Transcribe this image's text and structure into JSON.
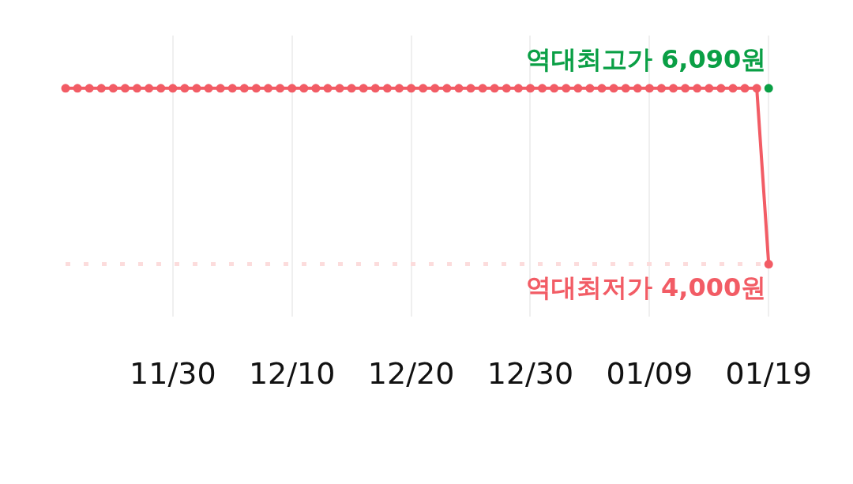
{
  "chart_data": {
    "type": "line",
    "categories": [
      null,
      null,
      null,
      null,
      null,
      null,
      null,
      null,
      null,
      "11/30",
      null,
      null,
      null,
      null,
      null,
      null,
      null,
      null,
      null,
      "12/10",
      null,
      null,
      null,
      null,
      null,
      null,
      null,
      null,
      null,
      "12/20",
      null,
      null,
      null,
      null,
      null,
      null,
      null,
      null,
      null,
      "12/30",
      null,
      null,
      null,
      null,
      null,
      null,
      null,
      null,
      null,
      "01/09",
      null,
      null,
      null,
      null,
      null,
      null,
      null,
      null,
      null,
      "01/19"
    ],
    "tick_labels": "x",
    "grid": "x",
    "marker": "circle",
    "line_style": "solid",
    "series": [
      {
        "color": "#f25c65",
        "values": [
          6090,
          6090,
          6090,
          6090,
          6090,
          6090,
          6090,
          6090,
          6090,
          6090,
          6090,
          6090,
          6090,
          6090,
          6090,
          6090,
          6090,
          6090,
          6090,
          6090,
          6090,
          6090,
          6090,
          6090,
          6090,
          6090,
          6090,
          6090,
          6090,
          6090,
          6090,
          6090,
          6090,
          6090,
          6090,
          6090,
          6090,
          6090,
          6090,
          6090,
          6090,
          6090,
          6090,
          6090,
          6090,
          6090,
          6090,
          6090,
          6090,
          6090,
          6090,
          6090,
          6090,
          6090,
          6090,
          6090,
          6090,
          6090,
          6090,
          4000
        ],
        "value_labels": [
          null,
          null,
          null,
          null,
          null,
          null,
          null,
          null,
          null,
          null,
          null,
          null,
          null,
          null,
          null,
          null,
          null,
          null,
          null,
          null,
          null,
          null,
          null,
          null,
          null,
          null,
          null,
          null,
          null,
          null,
          null,
          null,
          null,
          null,
          null,
          null,
          null,
          null,
          null,
          null,
          null,
          null,
          null,
          null,
          null,
          null,
          null,
          null,
          null,
          null,
          null,
          null,
          null,
          null,
          null,
          null,
          null,
          null,
          null,
          "역대최저가 4,000원"
        ]
      },
      {
        "type": "scatter",
        "color": "#0a9f45",
        "values": [
          null,
          null,
          null,
          null,
          null,
          null,
          null,
          null,
          null,
          null,
          null,
          null,
          null,
          null,
          null,
          null,
          null,
          null,
          null,
          null,
          null,
          null,
          null,
          null,
          null,
          null,
          null,
          null,
          null,
          null,
          null,
          null,
          null,
          null,
          null,
          null,
          null,
          null,
          null,
          null,
          null,
          null,
          null,
          null,
          null,
          null,
          null,
          null,
          null,
          null,
          null,
          null,
          null,
          null,
          null,
          null,
          null,
          null,
          null,
          6090
        ],
        "value_labels": [
          null,
          null,
          null,
          null,
          null,
          null,
          null,
          null,
          null,
          null,
          null,
          null,
          null,
          null,
          null,
          null,
          null,
          null,
          null,
          null,
          null,
          null,
          null,
          null,
          null,
          null,
          null,
          null,
          null,
          null,
          null,
          null,
          null,
          null,
          null,
          null,
          null,
          null,
          null,
          null,
          null,
          null,
          null,
          null,
          null,
          null,
          null,
          null,
          null,
          null,
          null,
          null,
          null,
          null,
          null,
          null,
          null,
          null,
          null,
          "역대최고가 6,090원"
        ]
      }
    ],
    "ref_lines": [
      {
        "axis": "y",
        "value": 4000,
        "color": "#fcdcdc",
        "line_style": "dotted"
      }
    ]
  }
}
